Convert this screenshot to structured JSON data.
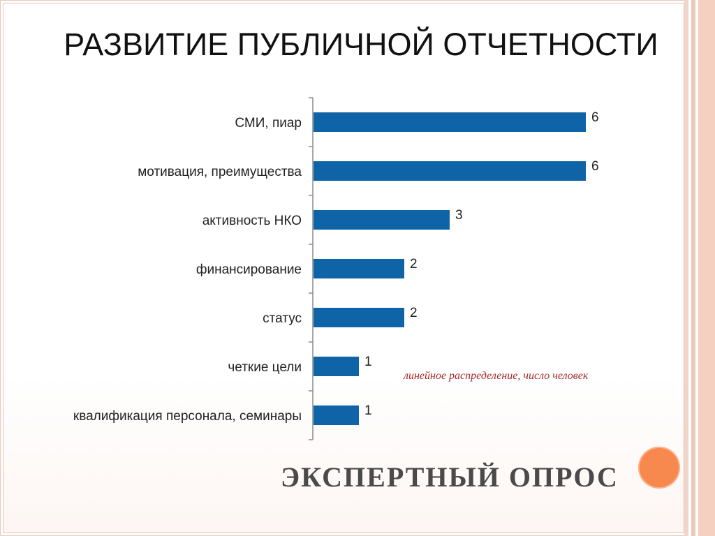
{
  "slide": {
    "title": "РАЗВИТИЕ ПУБЛИЧНОЙ ОТЧЕТНОСТИ",
    "note": "линейное распределение, число человек",
    "footer": "ЭКСПЕРТНЫЙ ОПРОС"
  },
  "colors": {
    "bar": "#0e64a6",
    "accent_circle": "#f7884e",
    "note": "#a52a2a"
  },
  "chart_data": {
    "type": "bar",
    "orientation": "horizontal",
    "categories": [
      "СМИ, пиар",
      "мотивация, преимущества",
      "активность НКО",
      "финансирование",
      "статус",
      "четкие цели",
      "квалификация персонала, семинары"
    ],
    "values": [
      6,
      6,
      3,
      2,
      2,
      1,
      1
    ],
    "data_labels": [
      "6",
      "6",
      "3",
      "2",
      "2",
      "1",
      "1"
    ],
    "xlim": [
      0,
      6
    ],
    "grid": false,
    "legend": "none",
    "title": "",
    "xlabel": "",
    "ylabel": ""
  }
}
